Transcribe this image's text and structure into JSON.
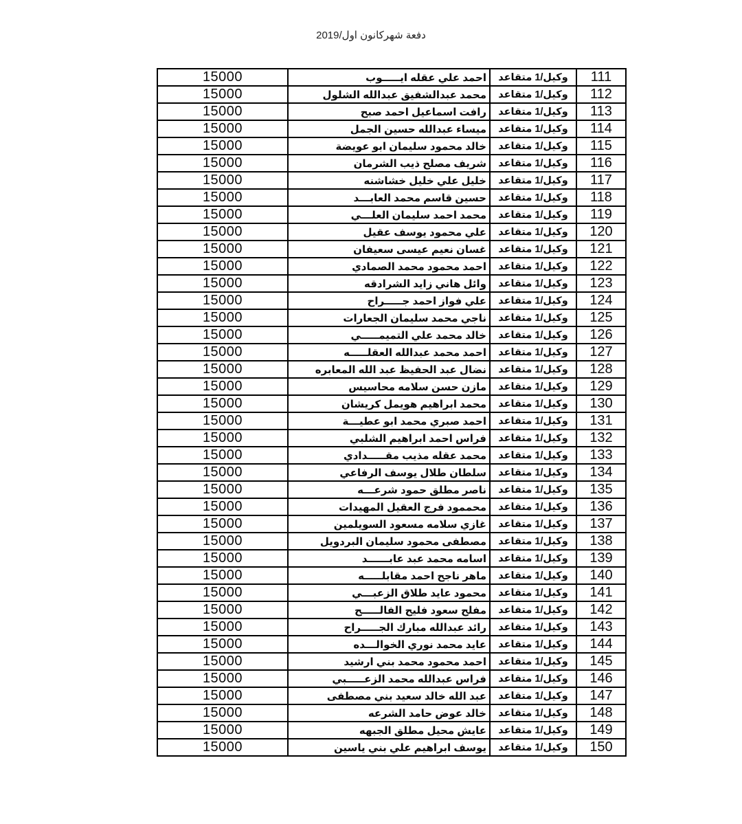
{
  "page": {
    "header": "دفعة شهركانون اول/2019"
  },
  "table": {
    "amount_label": "15000",
    "rank_label": "وكيل/1 متقاعد",
    "rows": [
      {
        "serial": "111",
        "rank": "وكيل/1 متقاعد",
        "name": "احمد علي عقله ايـــــوب",
        "amount": "15000"
      },
      {
        "serial": "112",
        "rank": "وكيل/1 متقاعد",
        "name": "محمد عبدالشفيق عبدالله الشلول",
        "amount": "15000"
      },
      {
        "serial": "113",
        "rank": "وكيل/1 متقاعد",
        "name": "رافت اسماعيل احمد صبح",
        "amount": "15000"
      },
      {
        "serial": "114",
        "rank": "وكيل/1 متقاعد",
        "name": "ميساء عبدالله حسين الجمل",
        "amount": "15000"
      },
      {
        "serial": "115",
        "rank": "وكيل/1 متقاعد",
        "name": "خالد محمود سليمان ابو عويضة",
        "amount": "15000"
      },
      {
        "serial": "116",
        "rank": "وكيل/1 متقاعد",
        "name": "شريف مصلح ذيب الشرمان",
        "amount": "15000"
      },
      {
        "serial": "117",
        "rank": "وكيل/1 متقاعد",
        "name": "خليل  علي خليل خشاشنه",
        "amount": "15000"
      },
      {
        "serial": "118",
        "rank": "وكيل/1 متقاعد",
        "name": "حسين قاسم محمد العابـــد",
        "amount": "15000"
      },
      {
        "serial": "119",
        "rank": "وكيل/1 متقاعد",
        "name": "محمد احمد سليمان العلـــي",
        "amount": "15000"
      },
      {
        "serial": "120",
        "rank": "وكيل/1 متقاعد",
        "name": "علي محمود يوسف عقيل",
        "amount": "15000"
      },
      {
        "serial": "121",
        "rank": "وكيل/1 متقاعد",
        "name": "غسان نعيم عيسى سعيفان",
        "amount": "15000"
      },
      {
        "serial": "122",
        "rank": "وكيل/1 متقاعد",
        "name": "احمد محمود محمد الصمادي",
        "amount": "15000"
      },
      {
        "serial": "123",
        "rank": "وكيل/1 متقاعد",
        "name": "وائل هاني زايد الشرادقه",
        "amount": "15000"
      },
      {
        "serial": "124",
        "rank": "وكيل/1 متقاعد",
        "name": "علي فواز احمد جـــــراح",
        "amount": "15000"
      },
      {
        "serial": "125",
        "rank": "وكيل/1 متقاعد",
        "name": "ناجي محمد سليمان الجعارات",
        "amount": "15000"
      },
      {
        "serial": "126",
        "rank": "وكيل/1 متقاعد",
        "name": "خالد محمد علي التميمـــــي",
        "amount": "15000"
      },
      {
        "serial": "127",
        "rank": "وكيل/1 متقاعد",
        "name": "احمد محمد عبدالله العقلـــــه",
        "amount": "15000"
      },
      {
        "serial": "128",
        "rank": "وكيل/1 متقاعد",
        "name": "نضال عبد الحفيظ عبد الله المعابره",
        "amount": "15000"
      },
      {
        "serial": "129",
        "rank": "وكيل/1 متقاعد",
        "name": "مازن حسن سلامه محاسيس",
        "amount": "15000"
      },
      {
        "serial": "130",
        "rank": "وكيل/1 متقاعد",
        "name": "محمد ابراهيم هويمل كريشان",
        "amount": "15000"
      },
      {
        "serial": "131",
        "rank": "وكيل/1 متقاعد",
        "name": "احمد صبري محمد ابو عطيـــة",
        "amount": "15000"
      },
      {
        "serial": "132",
        "rank": "وكيل/1 متقاعد",
        "name": "فراس احمد ابراهيم الشلبي",
        "amount": "15000"
      },
      {
        "serial": "133",
        "rank": "وكيل/1 متقاعد",
        "name": "محمد عقله مذيب مقـــــدادي",
        "amount": "15000"
      },
      {
        "serial": "134",
        "rank": "وكيل/1 متقاعد",
        "name": "سلطان طلال يوسف الرفاعي",
        "amount": "15000"
      },
      {
        "serial": "135",
        "rank": "وكيل/1 متقاعد",
        "name": "ناصر مطلق حمود شرعـــه",
        "amount": "15000"
      },
      {
        "serial": "136",
        "rank": "وكيل/1 متقاعد",
        "name": "محممود فرج العقيل المهيدات",
        "amount": "15000"
      },
      {
        "serial": "137",
        "rank": "وكيل/1 متقاعد",
        "name": "غازي سلامه مسعود السويلمين",
        "amount": "15000"
      },
      {
        "serial": "138",
        "rank": "وكيل/1 متقاعد",
        "name": "مصطفى محمود سليمان البردويل",
        "amount": "15000"
      },
      {
        "serial": "139",
        "rank": "وكيل/1 متقاعد",
        "name": "اسامه محمد عبد عابــــــد",
        "amount": "15000"
      },
      {
        "serial": "140",
        "rank": "وكيل/1 متقاعد",
        "name": "ماهر ناجح احمد مقابلـــــه",
        "amount": "15000"
      },
      {
        "serial": "141",
        "rank": "وكيل/1 متقاعد",
        "name": "محمود عايد طلاق الزعبـــي",
        "amount": "15000"
      },
      {
        "serial": "142",
        "rank": "وكيل/1 متقاعد",
        "name": "مفلح سعود فليح الفالـــــح",
        "amount": "15000"
      },
      {
        "serial": "143",
        "rank": "وكيل/1 متقاعد",
        "name": "رائد عبدالله مبارك الجـــــراح",
        "amount": "15000"
      },
      {
        "serial": "144",
        "rank": "وكيل/1 متقاعد",
        "name": "عايد محمد نوري الخوالـــده",
        "amount": "15000"
      },
      {
        "serial": "145",
        "rank": "وكيل/1 متقاعد",
        "name": "احمد محمود محمد بني ارشيد",
        "amount": "15000"
      },
      {
        "serial": "146",
        "rank": "وكيل/1 متقاعد",
        "name": "فراس عبدالله محمد الزعـــــبي",
        "amount": "15000"
      },
      {
        "serial": "147",
        "rank": "وكيل/1 متقاعد",
        "name": "عبد الله خالد سعيد بني مصطفى",
        "amount": "15000"
      },
      {
        "serial": "148",
        "rank": "وكيل/1 متقاعد",
        "name": "خالد عوض حامد الشرعه",
        "amount": "15000"
      },
      {
        "serial": "149",
        "rank": "وكيل/1 متقاعد",
        "name": "عايش محيل مطلق الجبهه",
        "amount": "15000"
      },
      {
        "serial": "150",
        "rank": "وكيل/1 متقاعد",
        "name": "يوسف ابراهيم علي بني ياسين",
        "amount": "15000"
      }
    ]
  },
  "colors": {
    "border": "#000000",
    "text": "#0a0a0a",
    "background": "#ffffff"
  }
}
